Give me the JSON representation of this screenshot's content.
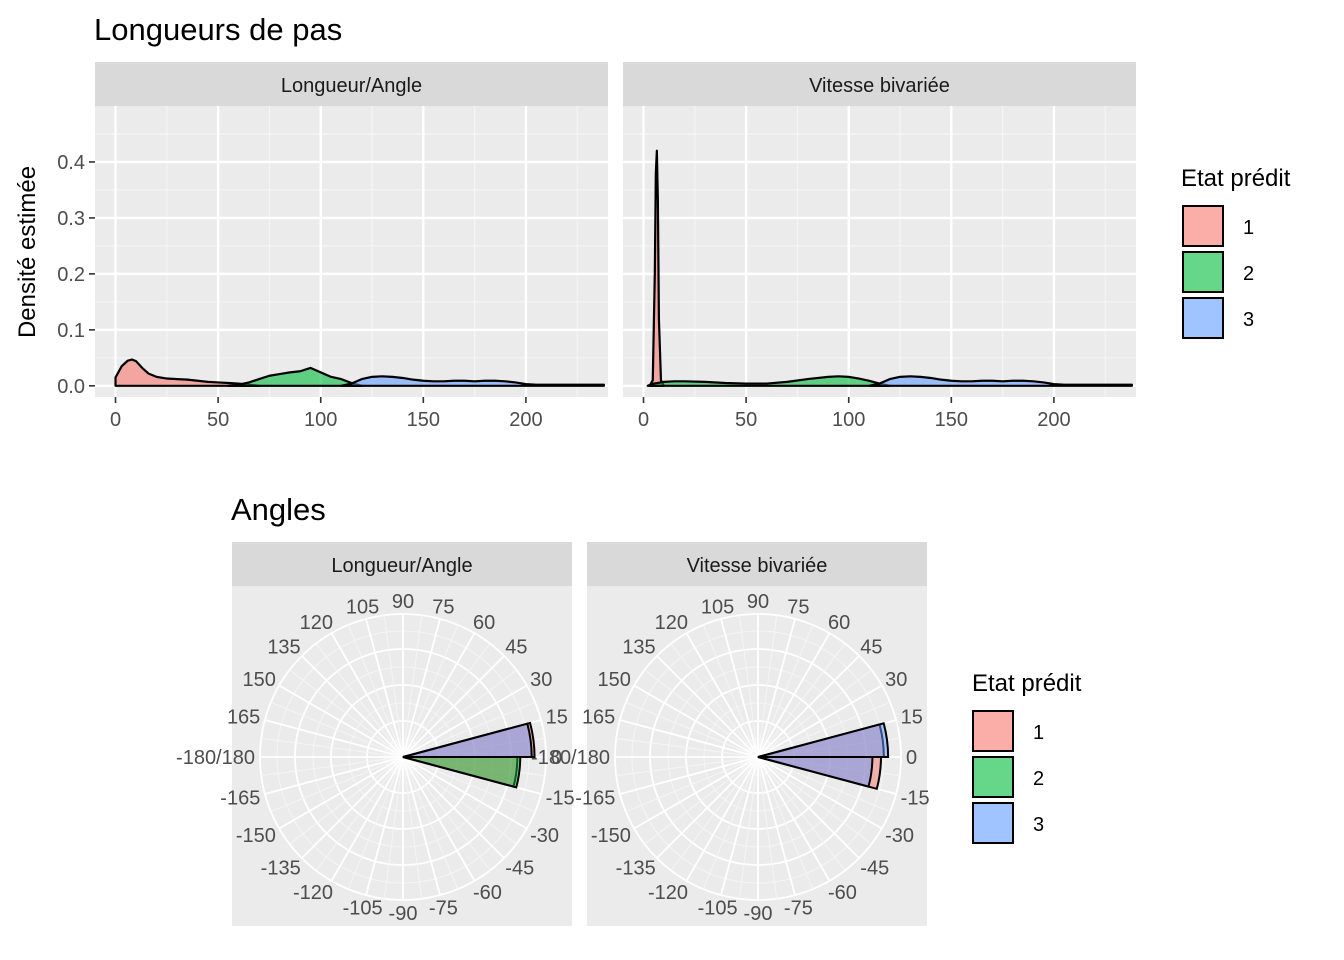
{
  "top": {
    "title": "Longueurs de pas",
    "ylabel": "Densité estimée",
    "legend_title": "Etat prédit"
  },
  "bottom": {
    "title": "Angles",
    "legend_title": "Etat prédit"
  },
  "states": [
    {
      "label": "1",
      "color": "#F8766D"
    },
    {
      "label": "2",
      "color": "#00BA38"
    },
    {
      "label": "3",
      "color": "#619CFF"
    }
  ],
  "chart_data": [
    {
      "type": "area",
      "title": "Longueur/Angle",
      "xlim": [
        -10,
        240
      ],
      "ylim": [
        -0.02,
        0.5
      ],
      "x_ticks": [
        0,
        50,
        100,
        150,
        200
      ],
      "y_ticks": [
        0.0,
        0.1,
        0.2,
        0.3,
        0.4
      ],
      "x_tick_labels": [
        "0",
        "50",
        "100",
        "150",
        "200"
      ],
      "y_tick_labels": [
        "0.0",
        "0.1",
        "0.2",
        "0.3",
        "0.4"
      ],
      "series": [
        {
          "name": "1",
          "x": [
            0,
            3,
            6,
            8,
            10,
            13,
            16,
            20,
            25,
            30,
            35,
            40,
            45,
            50,
            55,
            60,
            65,
            70
          ],
          "y": [
            0.015,
            0.035,
            0.045,
            0.047,
            0.044,
            0.032,
            0.022,
            0.016,
            0.013,
            0.012,
            0.011,
            0.009,
            0.007,
            0.006,
            0.005,
            0.004,
            0.002,
            0.0
          ]
        },
        {
          "name": "2",
          "x": [
            55,
            60,
            65,
            70,
            75,
            80,
            85,
            90,
            95,
            100,
            105,
            110,
            115,
            120
          ],
          "y": [
            0.0,
            0.002,
            0.006,
            0.012,
            0.018,
            0.021,
            0.024,
            0.026,
            0.032,
            0.024,
            0.016,
            0.012,
            0.005,
            0.0
          ]
        },
        {
          "name": "3",
          "x": [
            110,
            115,
            120,
            125,
            130,
            135,
            140,
            145,
            150,
            155,
            160,
            165,
            170,
            175,
            180,
            185,
            190,
            195,
            200,
            205,
            210,
            220,
            238
          ],
          "y": [
            0.0,
            0.004,
            0.012,
            0.016,
            0.017,
            0.016,
            0.014,
            0.011,
            0.009,
            0.008,
            0.008,
            0.009,
            0.009,
            0.008,
            0.009,
            0.009,
            0.008,
            0.006,
            0.003,
            0.002,
            0.002,
            0.002,
            0.002
          ]
        }
      ]
    },
    {
      "type": "area",
      "title": "Vitesse bivariée",
      "xlim": [
        -10,
        240
      ],
      "ylim": [
        -0.02,
        0.5
      ],
      "x_ticks": [
        0,
        50,
        100,
        150,
        200
      ],
      "x_tick_labels": [
        "0",
        "50",
        "100",
        "150",
        "200"
      ],
      "series": [
        {
          "name": "1",
          "x": [
            3,
            4.5,
            5.5,
            6,
            6.5,
            7,
            7.5,
            8.5,
            10
          ],
          "y": [
            0.0,
            0.01,
            0.2,
            0.38,
            0.42,
            0.33,
            0.12,
            0.01,
            0.0
          ]
        },
        {
          "name": "2",
          "x": [
            2,
            5,
            10,
            15,
            20,
            30,
            40,
            50,
            60,
            70,
            80,
            90,
            95,
            100,
            105,
            110,
            115,
            120
          ],
          "y": [
            0.0,
            0.004,
            0.007,
            0.008,
            0.008,
            0.007,
            0.005,
            0.004,
            0.004,
            0.007,
            0.012,
            0.016,
            0.017,
            0.016,
            0.013,
            0.009,
            0.004,
            0.0
          ]
        },
        {
          "name": "3",
          "x": [
            110,
            115,
            120,
            125,
            130,
            135,
            140,
            145,
            150,
            155,
            160,
            165,
            170,
            175,
            180,
            185,
            190,
            195,
            200,
            205,
            210,
            220,
            238
          ],
          "y": [
            0.0,
            0.004,
            0.012,
            0.016,
            0.017,
            0.016,
            0.014,
            0.011,
            0.009,
            0.008,
            0.008,
            0.009,
            0.009,
            0.008,
            0.009,
            0.009,
            0.008,
            0.006,
            0.003,
            0.002,
            0.002,
            0.002,
            0.002
          ]
        }
      ]
    },
    {
      "type": "polar-bar",
      "title": "Longueur/Angle",
      "angle_labels": [
        "0",
        "15",
        "30",
        "45",
        "60",
        "75",
        "90",
        "105",
        "120",
        "135",
        "150",
        "165",
        "-180/180",
        "-165",
        "-150",
        "-135",
        "-120",
        "-105",
        "-90",
        "-75",
        "-60",
        "-45",
        "-30",
        "-15"
      ],
      "bars": [
        {
          "state": "1",
          "angle_range": [
            0,
            15
          ],
          "radius": 0.92
        },
        {
          "state": "3",
          "angle_range": [
            0,
            15
          ],
          "radius": 0.9
        },
        {
          "state": "1",
          "angle_range": [
            -15,
            0
          ],
          "radius": 0.8
        },
        {
          "state": "2",
          "angle_range": [
            -15,
            0
          ],
          "radius": 0.82
        }
      ]
    },
    {
      "type": "polar-bar",
      "title": "Vitesse bivariée",
      "angle_labels": [
        "0",
        "15",
        "30",
        "45",
        "60",
        "75",
        "90",
        "105",
        "120",
        "135",
        "150",
        "165",
        "-180/180",
        "-165",
        "-150",
        "-135",
        "-120",
        "-105",
        "-90",
        "-75",
        "-60",
        "-45",
        "-30",
        "-15"
      ],
      "bars": [
        {
          "state": "1",
          "angle_range": [
            0,
            15
          ],
          "radius": 0.88
        },
        {
          "state": "3",
          "angle_range": [
            0,
            15
          ],
          "radius": 0.91
        },
        {
          "state": "1",
          "angle_range": [
            -15,
            0
          ],
          "radius": 0.86
        },
        {
          "state": "3",
          "angle_range": [
            -15,
            0
          ],
          "radius": 0.8
        }
      ]
    }
  ]
}
